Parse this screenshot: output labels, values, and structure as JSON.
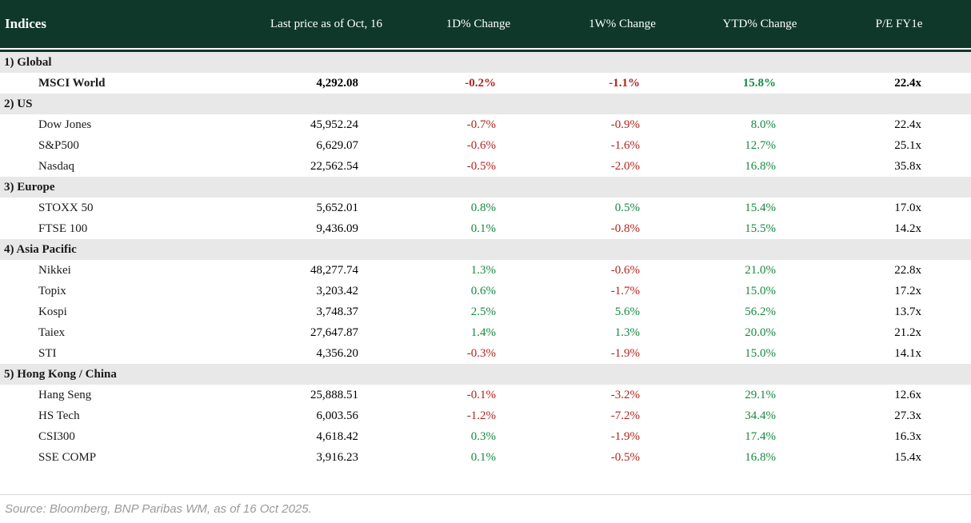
{
  "chart_data": {
    "type": "table",
    "title": "Indices",
    "columns": [
      "Last price as of Oct, 16",
      "1D% Change",
      "1W% Change",
      "YTD% Change",
      "P/E FY1e"
    ],
    "sections": [
      {
        "label": "1) Global",
        "rows": [
          {
            "name": "MSCI World",
            "bold": true,
            "price": "4,292.08",
            "d1": "-0.2%",
            "w1": "-1.1%",
            "ytd": "15.8%",
            "pe": "22.4x"
          }
        ]
      },
      {
        "label": "2) US",
        "rows": [
          {
            "name": "Dow Jones",
            "price": "45,952.24",
            "d1": "-0.7%",
            "w1": "-0.9%",
            "ytd": "8.0%",
            "pe": "22.4x"
          },
          {
            "name": "S&P500",
            "price": "6,629.07",
            "d1": "-0.6%",
            "w1": "-1.6%",
            "ytd": "12.7%",
            "pe": "25.1x"
          },
          {
            "name": "Nasdaq",
            "price": "22,562.54",
            "d1": "-0.5%",
            "w1": "-2.0%",
            "ytd": "16.8%",
            "pe": "35.8x"
          }
        ]
      },
      {
        "label": "3) Europe",
        "rows": [
          {
            "name": "STOXX 50",
            "price": "5,652.01",
            "d1": "0.8%",
            "w1": "0.5%",
            "ytd": "15.4%",
            "pe": "17.0x"
          },
          {
            "name": "FTSE 100",
            "price": "9,436.09",
            "d1": "0.1%",
            "w1": "-0.8%",
            "ytd": "15.5%",
            "pe": "14.2x"
          }
        ]
      },
      {
        "label": "4) Asia Pacific",
        "rows": [
          {
            "name": "Nikkei",
            "price": "48,277.74",
            "d1": "1.3%",
            "w1": "-0.6%",
            "ytd": "21.0%",
            "pe": "22.8x"
          },
          {
            "name": "Topix",
            "price": "3,203.42",
            "d1": "0.6%",
            "w1": "-1.7%",
            "ytd": "15.0%",
            "pe": "17.2x"
          },
          {
            "name": "Kospi",
            "price": "3,748.37",
            "d1": "2.5%",
            "w1": "5.6%",
            "ytd": "56.2%",
            "pe": "13.7x"
          },
          {
            "name": "Taiex",
            "price": "27,647.87",
            "d1": "1.4%",
            "w1": "1.3%",
            "ytd": "20.0%",
            "pe": "21.2x"
          },
          {
            "name": "STI",
            "price": "4,356.20",
            "d1": "-0.3%",
            "w1": "-1.9%",
            "ytd": "15.0%",
            "pe": "14.1x"
          }
        ]
      },
      {
        "label": "5) Hong Kong / China",
        "rows": [
          {
            "name": "Hang Seng",
            "price": "25,888.51",
            "d1": "-0.1%",
            "w1": "-3.2%",
            "ytd": "29.1%",
            "pe": "12.6x"
          },
          {
            "name": "HS Tech",
            "price": "6,003.56",
            "d1": "-1.2%",
            "w1": "-7.2%",
            "ytd": "34.4%",
            "pe": "27.3x"
          },
          {
            "name": "CSI300",
            "price": "4,618.42",
            "d1": "0.3%",
            "w1": "-1.9%",
            "ytd": "17.4%",
            "pe": "16.3x"
          },
          {
            "name": "SSE COMP",
            "price": "3,916.23",
            "d1": "0.1%",
            "w1": "-0.5%",
            "ytd": "16.8%",
            "pe": "15.4x"
          }
        ]
      }
    ]
  },
  "footer": {
    "source": "Source: Bloomberg, BNP Paribas WM, as of 16 Oct 2025."
  },
  "colors": {
    "header_bg": "#0f382b",
    "section_bg": "#e8e8e8",
    "positive": "#168a40",
    "negative": "#b2241c",
    "muted": "#9a9a9a"
  }
}
